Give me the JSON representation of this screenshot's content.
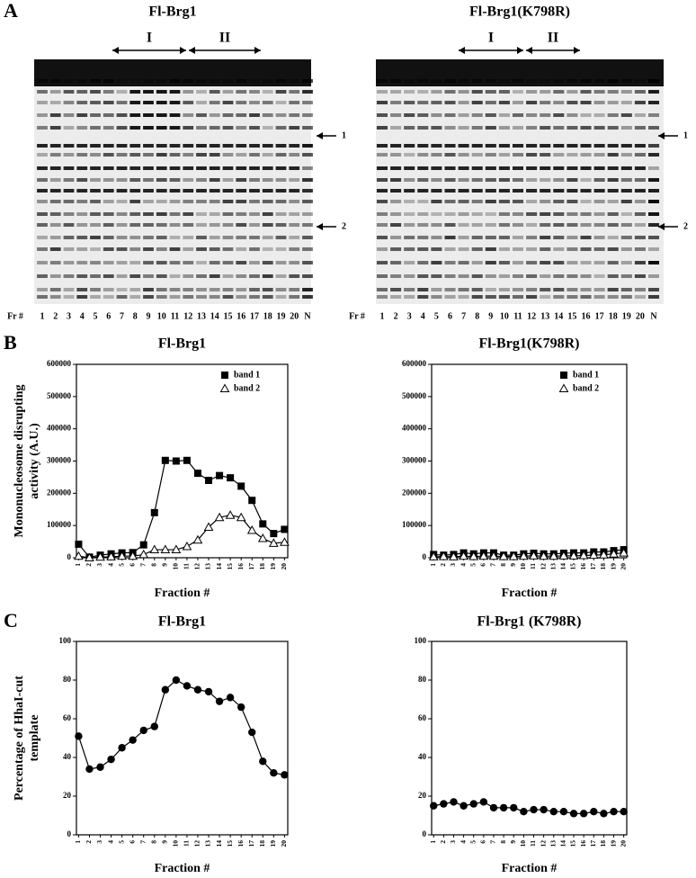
{
  "panel_labels": [
    "A",
    "B",
    "C"
  ],
  "gels": [
    {
      "title": "Fl-Brg1",
      "lane_prefix": "Fr #",
      "lanes": [
        "1",
        "2",
        "3",
        "4",
        "5",
        "6",
        "7",
        "8",
        "9",
        "10",
        "11",
        "12",
        "13",
        "14",
        "15",
        "16",
        "17",
        "18",
        "19",
        "20",
        "N"
      ],
      "regions": [
        "I",
        "II"
      ],
      "markers": [
        "1",
        "2"
      ]
    },
    {
      "title": "Fl-Brg1(K798R)",
      "lane_prefix": "Fr #",
      "lanes": [
        "1",
        "2",
        "3",
        "4",
        "5",
        "6",
        "7",
        "8",
        "9",
        "10",
        "11",
        "12",
        "13",
        "14",
        "15",
        "16",
        "17",
        "18",
        "19",
        "20",
        "N"
      ],
      "regions": [
        "I",
        "II"
      ],
      "markers": [
        "1",
        "2"
      ]
    }
  ],
  "chart_data": [
    {
      "type": "line",
      "title": "Fl-Brg1",
      "ylabel": [
        "Mononucleosome disrupting",
        "activity (A.U.)"
      ],
      "xlabel": "Fraction #",
      "x": [
        1,
        2,
        3,
        4,
        5,
        6,
        7,
        8,
        9,
        10,
        11,
        12,
        13,
        14,
        15,
        16,
        17,
        18,
        19,
        20
      ],
      "xlim": [
        0.8,
        20.3
      ],
      "xticks": [
        1,
        2,
        3,
        4,
        5,
        6,
        7,
        8,
        9,
        10,
        11,
        12,
        13,
        14,
        15,
        16,
        17,
        18,
        19,
        20
      ],
      "ylim": [
        0,
        600000
      ],
      "yticks": [
        0,
        100000,
        200000,
        300000,
        400000,
        500000,
        600000
      ],
      "legend": "upper right",
      "series": [
        {
          "name": "band 1",
          "color": "#000000",
          "marker": "square",
          "values": [
            42000,
            2000,
            8000,
            12000,
            15000,
            16000,
            40000,
            140000,
            302000,
            300000,
            302000,
            262000,
            240000,
            255000,
            248000,
            222000,
            178000,
            105000,
            75000,
            88000
          ]
        },
        {
          "name": "band 2",
          "color": "#000000",
          "marker": "triangle",
          "values": [
            5000,
            0,
            2000,
            3000,
            5000,
            5000,
            10000,
            25000,
            25000,
            25000,
            35000,
            55000,
            95000,
            125000,
            132000,
            125000,
            85000,
            60000,
            45000,
            48000
          ]
        }
      ]
    },
    {
      "type": "line",
      "title": "Fl-Brg1(K798R)",
      "xlabel": "Fraction #",
      "x": [
        1,
        2,
        3,
        4,
        5,
        6,
        7,
        8,
        9,
        10,
        11,
        12,
        13,
        14,
        15,
        16,
        17,
        18,
        19,
        20
      ],
      "xlim": [
        0.8,
        20.3
      ],
      "xticks": [
        1,
        2,
        3,
        4,
        5,
        6,
        7,
        8,
        9,
        10,
        11,
        12,
        13,
        14,
        15,
        16,
        17,
        18,
        19,
        20
      ],
      "ylim": [
        0,
        600000
      ],
      "yticks": [
        0,
        100000,
        200000,
        300000,
        400000,
        500000,
        600000
      ],
      "legend": "upper right",
      "series": [
        {
          "name": "band 1",
          "color": "#000000",
          "marker": "square",
          "values": [
            10000,
            8000,
            10000,
            15000,
            12000,
            15000,
            15000,
            8000,
            8000,
            12000,
            14000,
            12000,
            12000,
            14000,
            15000,
            15000,
            18000,
            18000,
            22000,
            25000
          ]
        },
        {
          "name": "band 2",
          "color": "#000000",
          "marker": "triangle",
          "values": [
            3000,
            4000,
            3000,
            5000,
            4000,
            5000,
            5000,
            4000,
            4000,
            5000,
            6000,
            5000,
            5000,
            6000,
            6000,
            7000,
            8000,
            9000,
            12000,
            15000
          ]
        }
      ]
    },
    {
      "type": "line",
      "title": "Fl-Brg1",
      "ylabel": [
        "Percentage of HhaI-cut",
        "template"
      ],
      "xlabel": "Fraction #",
      "x": [
        1,
        2,
        3,
        4,
        5,
        6,
        7,
        8,
        9,
        10,
        11,
        12,
        13,
        14,
        15,
        16,
        17,
        18,
        19,
        20
      ],
      "xlim": [
        0.8,
        20.3
      ],
      "xticks": [
        1,
        2,
        3,
        4,
        5,
        6,
        7,
        8,
        9,
        10,
        11,
        12,
        13,
        14,
        15,
        16,
        17,
        18,
        19,
        20
      ],
      "ylim": [
        0,
        100
      ],
      "yticks": [
        0,
        20,
        40,
        60,
        80,
        100
      ],
      "series": [
        {
          "color": "#000000",
          "marker": "circle",
          "values": [
            51,
            34,
            35,
            39,
            45,
            49,
            54,
            56,
            75,
            80,
            77,
            75,
            74,
            69,
            71,
            66,
            53,
            38,
            32,
            31
          ]
        }
      ]
    },
    {
      "type": "line",
      "title": "Fl-Brg1 (K798R)",
      "xlabel": "Fraction #",
      "x": [
        1,
        2,
        3,
        4,
        5,
        6,
        7,
        8,
        9,
        10,
        11,
        12,
        13,
        14,
        15,
        16,
        17,
        18,
        19,
        20
      ],
      "xlim": [
        0.8,
        20.3
      ],
      "xticks": [
        1,
        2,
        3,
        4,
        5,
        6,
        7,
        8,
        9,
        10,
        11,
        12,
        13,
        14,
        15,
        16,
        17,
        18,
        19,
        20
      ],
      "ylim": [
        0,
        100
      ],
      "yticks": [
        0,
        20,
        40,
        60,
        80,
        100
      ],
      "series": [
        {
          "color": "#000000",
          "marker": "circle",
          "values": [
            15,
            16,
            17,
            15,
            16,
            17,
            14,
            14,
            14,
            12,
            13,
            13,
            12,
            12,
            11,
            11,
            12,
            11,
            12,
            12
          ]
        }
      ]
    }
  ]
}
